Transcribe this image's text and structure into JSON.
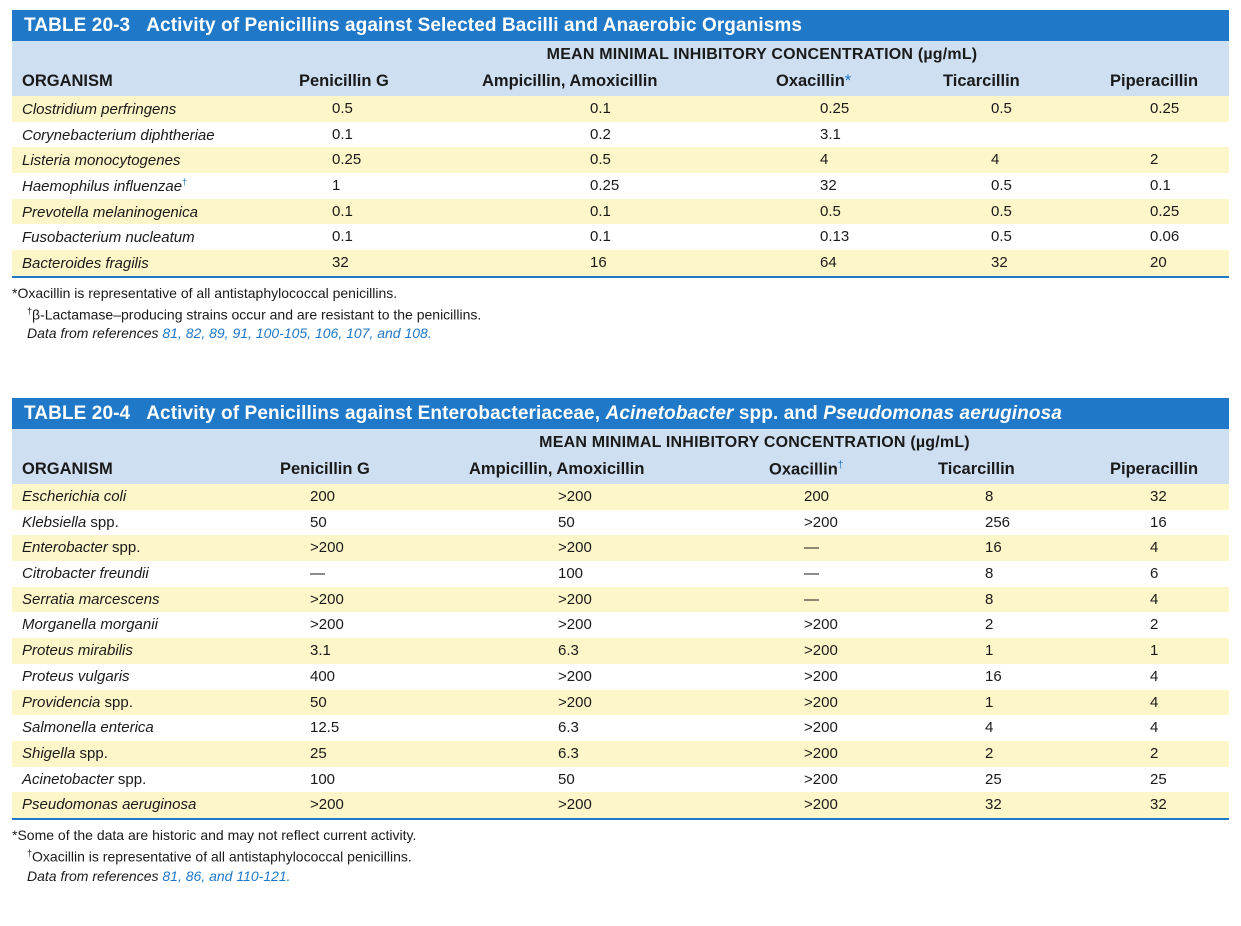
{
  "table1": {
    "number": "TABLE 20-3",
    "title": "Activity of Penicillins against Selected Bacilli and Anaerobic Organisms",
    "super_header": "MEAN MINIMAL INHIBITORY CONCENTRATION (µg/mL)",
    "org_header": "ORGANISM",
    "columns": [
      "Penicillin G",
      "Ampicillin, Amoxicillin",
      "Oxacillin",
      "Ticarcillin",
      "Piperacillin"
    ],
    "oxacillin_mark": "*",
    "rows": [
      {
        "organism": "Clostridium perfringens",
        "dagger": "",
        "values": [
          "0.5",
          "0.1",
          "0.25",
          "0.5",
          "0.25"
        ]
      },
      {
        "organism": "Corynebacterium diphtheriae",
        "dagger": "",
        "values": [
          "0.1",
          "0.2",
          "3.1",
          "",
          ""
        ]
      },
      {
        "organism": "Listeria monocytogenes",
        "dagger": "",
        "values": [
          "0.25",
          "0.5",
          "4",
          "4",
          "2"
        ]
      },
      {
        "organism": "Haemophilus influenzae",
        "dagger": "†",
        "values": [
          "1",
          "0.25",
          "32",
          "0.5",
          "0.1"
        ]
      },
      {
        "organism": "Prevotella melaninogenica",
        "dagger": "",
        "values": [
          "0.1",
          "0.1",
          "0.5",
          "0.5",
          "0.25"
        ]
      },
      {
        "organism": "Fusobacterium nucleatum",
        "dagger": "",
        "values": [
          "0.1",
          "0.1",
          "0.13",
          "0.5",
          "0.06"
        ]
      },
      {
        "organism": "Bacteroides fragilis",
        "dagger": "",
        "values": [
          "32",
          "16",
          "64",
          "32",
          "20"
        ]
      }
    ],
    "footnote1": "*Oxacillin is representative of all antistaphylococcal penicillins.",
    "footnote2_mark": "†",
    "footnote2": "β-Lactamase–producing strains occur and are resistant to the penicillins.",
    "data_prefix": "Data from references",
    "data_refs": "81, 82, 89, 91, 100-105, 106, 107, and 108."
  },
  "table2": {
    "number": "TABLE 20-4",
    "title_part1": "Activity of Penicillins against Enterobacteriaceae, ",
    "title_italic1": "Acinetobacter",
    "title_part2": " spp. and ",
    "title_italic2": "Pseudomonas aeruginosa",
    "super_header": "MEAN MINIMAL INHIBITORY CONCENTRATION (µg/mL)",
    "org_header": "ORGANISM",
    "columns": [
      "Penicillin G",
      "Ampicillin, Amoxicillin",
      "Oxacillin",
      "Ticarcillin",
      "Piperacillin"
    ],
    "oxacillin_mark": "†",
    "rows": [
      {
        "genus": "Escherichia coli",
        "suffix": "",
        "values": [
          "200",
          ">200",
          "200",
          "8",
          "32"
        ]
      },
      {
        "genus": "Klebsiella",
        "suffix": " spp.",
        "values": [
          "50",
          "50",
          ">200",
          "256",
          "16"
        ]
      },
      {
        "genus": "Enterobacter",
        "suffix": " spp.",
        "values": [
          ">200",
          ">200",
          "—",
          "16",
          "4"
        ]
      },
      {
        "genus": "Citrobacter freundii",
        "suffix": "",
        "values": [
          "—",
          "100",
          "—",
          "8",
          "6"
        ]
      },
      {
        "genus": "Serratia marcescens",
        "suffix": "",
        "values": [
          ">200",
          ">200",
          "—",
          "8",
          "4"
        ]
      },
      {
        "genus": "Morganella morganii",
        "suffix": "",
        "values": [
          ">200",
          ">200",
          ">200",
          "2",
          "2"
        ]
      },
      {
        "genus": "Proteus mirabilis",
        "suffix": "",
        "values": [
          "3.1",
          "6.3",
          ">200",
          "1",
          "1"
        ]
      },
      {
        "genus": "Proteus vulgaris",
        "suffix": "",
        "values": [
          "400",
          ">200",
          ">200",
          "16",
          "4"
        ]
      },
      {
        "genus": "Providencia",
        "suffix": " spp.",
        "values": [
          "50",
          ">200",
          ">200",
          "1",
          "4"
        ]
      },
      {
        "genus": "Salmonella enterica",
        "suffix": "",
        "values": [
          "12.5",
          "6.3",
          ">200",
          "4",
          "4"
        ]
      },
      {
        "genus": "Shigella",
        "suffix": " spp.",
        "values": [
          "25",
          "6.3",
          ">200",
          "2",
          "2"
        ]
      },
      {
        "genus": "Acinetobacter",
        "suffix": " spp.",
        "values": [
          "100",
          "50",
          ">200",
          "25",
          "25"
        ]
      },
      {
        "genus": "Pseudomonas aeruginosa",
        "suffix": "",
        "values": [
          ">200",
          ">200",
          ">200",
          "32",
          "32"
        ]
      }
    ],
    "footnote1": "*Some of the data are historic and may not reflect current activity.",
    "footnote2_mark": "†",
    "footnote2": "Oxacillin is representative of all antistaphylococcal penicillins.",
    "data_prefix": "Data from references",
    "data_refs": "81, 86, and 110-121."
  }
}
